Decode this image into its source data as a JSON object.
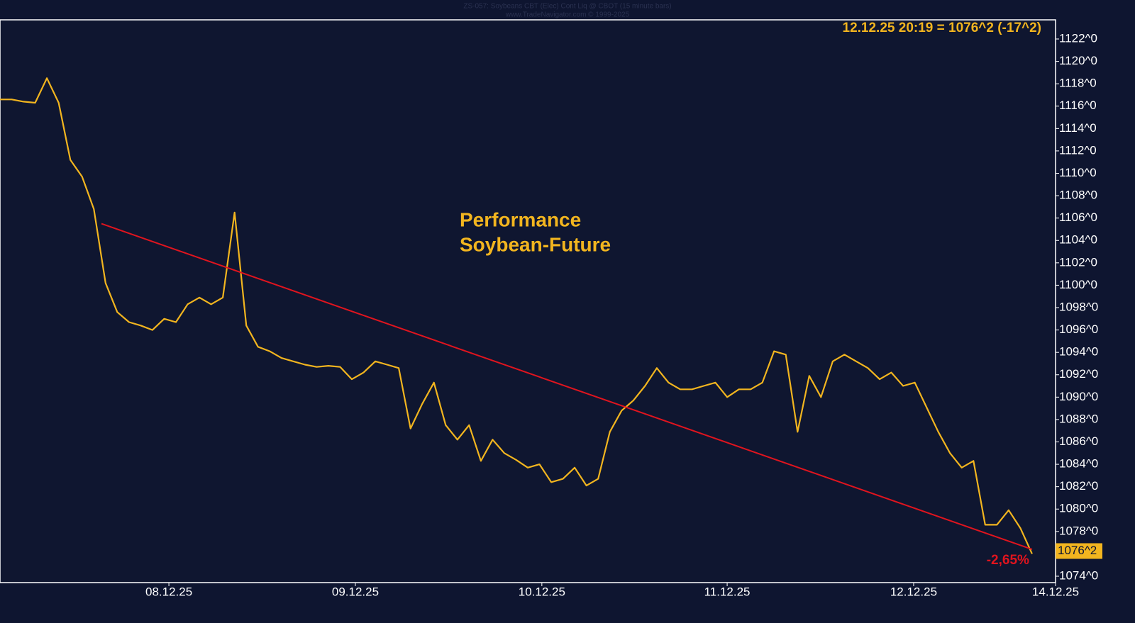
{
  "chart_data": {
    "type": "line",
    "title": "ZS-057:  Soybeans CBT (Elec) Cont Liq @ CBOT  (15 minute bars)",
    "subtitle": "www.TradeNavigator.com © 1999-2025",
    "quote": "12.12.25 20:19 = 1076^2 (-17^2)",
    "annotation": [
      "Performance",
      "Soybean-Future"
    ],
    "change_label": "-2,65%",
    "last_price": {
      "value": 1076.25,
      "label": "1076^2"
    },
    "xlim": [
      0,
      90
    ],
    "xticks": [
      {
        "value": 14.4,
        "label": "08.12.25"
      },
      {
        "value": 30.3,
        "label": "09.12.25"
      },
      {
        "value": 46.2,
        "label": "10.12.25"
      },
      {
        "value": 62,
        "label": "11.12.25"
      },
      {
        "value": 77.9,
        "label": "12.12.25"
      },
      {
        "value": 90,
        "label": "14.12.25"
      }
    ],
    "ylim": [
      1073.43,
      1123.71
    ],
    "yticks": [
      {
        "value": 1074,
        "label": "1074^0"
      },
      {
        "value": 1076,
        "label": "1076^0"
      },
      {
        "value": 1078,
        "label": "1078^0"
      },
      {
        "value": 1080,
        "label": "1080^0"
      },
      {
        "value": 1082,
        "label": "1082^0"
      },
      {
        "value": 1084,
        "label": "1084^0"
      },
      {
        "value": 1086,
        "label": "1086^0"
      },
      {
        "value": 1088,
        "label": "1088^0"
      },
      {
        "value": 1090,
        "label": "1090^0"
      },
      {
        "value": 1092,
        "label": "1092^0"
      },
      {
        "value": 1094,
        "label": "1094^0"
      },
      {
        "value": 1096,
        "label": "1096^0"
      },
      {
        "value": 1098,
        "label": "1098^0"
      },
      {
        "value": 1100,
        "label": "1100^0"
      },
      {
        "value": 1102,
        "label": "1102^0"
      },
      {
        "value": 1104,
        "label": "1104^0"
      },
      {
        "value": 1106,
        "label": "1106^0"
      },
      {
        "value": 1108,
        "label": "1108^0"
      },
      {
        "value": 1110,
        "label": "1110^0"
      },
      {
        "value": 1112,
        "label": "1112^0"
      },
      {
        "value": 1114,
        "label": "1114^0"
      },
      {
        "value": 1116,
        "label": "1116^0"
      },
      {
        "value": 1118,
        "label": "1118^0"
      },
      {
        "value": 1120,
        "label": "1120^0"
      },
      {
        "value": 1122,
        "label": "1122^0"
      }
    ],
    "series": [
      {
        "color": "#f2b51f",
        "x": [
          0,
          1,
          2,
          3,
          4,
          5,
          6,
          7,
          8,
          9,
          10,
          11,
          12,
          13,
          14,
          15,
          16,
          17,
          18,
          19,
          20,
          21,
          22,
          23,
          24,
          25,
          26,
          27,
          28,
          29,
          30,
          31,
          32,
          33,
          34,
          35,
          36,
          37,
          38,
          39,
          40,
          41,
          42,
          43,
          44,
          45,
          46,
          47,
          48,
          49,
          50,
          51,
          52,
          53,
          54,
          55,
          56,
          57,
          58,
          59,
          60,
          61,
          62,
          63,
          64,
          65,
          66,
          67,
          68,
          69,
          70,
          71,
          72,
          73,
          74,
          75,
          76,
          77,
          78,
          79,
          80,
          81,
          82,
          83,
          84,
          85,
          86,
          87,
          88
        ],
        "values": [
          1116.6,
          1116.6,
          1116.4,
          1116.3,
          1118.5,
          1116.3,
          1111.2,
          1109.7,
          1106.8,
          1100.2,
          1097.6,
          1096.7,
          1096.4,
          1096.0,
          1097.0,
          1096.7,
          1098.3,
          1098.9,
          1098.3,
          1098.9,
          1106.5,
          1096.4,
          1094.5,
          1094.1,
          1093.5,
          1093.2,
          1092.9,
          1092.7,
          1092.8,
          1092.7,
          1091.6,
          1092.2,
          1093.2,
          1092.9,
          1092.6,
          1087.2,
          1089.4,
          1091.3,
          1087.5,
          1086.2,
          1087.5,
          1084.3,
          1086.2,
          1085.0,
          1084.4,
          1083.7,
          1084.0,
          1082.4,
          1082.7,
          1083.7,
          1082.1,
          1082.7,
          1086.9,
          1088.8,
          1089.7,
          1091.0,
          1092.6,
          1091.3,
          1090.7,
          1090.7,
          1091.0,
          1091.3,
          1090.0,
          1090.7,
          1090.7,
          1091.3,
          1094.1,
          1093.8,
          1086.9,
          1091.9,
          1090.0,
          1093.2,
          1093.8,
          1093.2,
          1092.6,
          1091.6,
          1092.2,
          1091.0,
          1091.3,
          1089.1,
          1086.9,
          1085.0,
          1083.7,
          1084.3,
          1078.6,
          1078.6,
          1079.9,
          1078.3,
          1076.0
        ]
      }
    ],
    "trendline": {
      "color": "#e0141e",
      "x": [
        8.65,
        88
      ],
      "values": [
        1105.5,
        1076.4
      ]
    }
  }
}
